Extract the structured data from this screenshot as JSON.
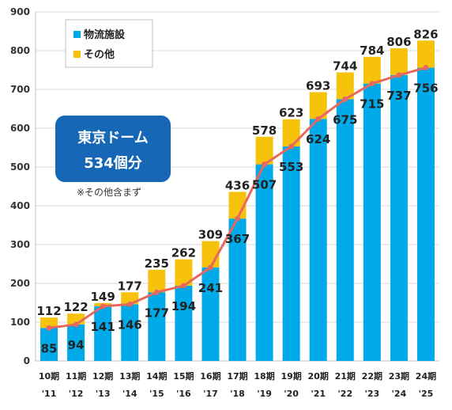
{
  "chart_data": {
    "type": "bar",
    "stacked": true,
    "categories": [
      "10期",
      "11期",
      "12期",
      "13期",
      "14期",
      "15期",
      "16期",
      "17期",
      "18期",
      "19期",
      "20期",
      "21期",
      "22期",
      "23期",
      "24期"
    ],
    "years": [
      "'11",
      "'12",
      "'13",
      "'14",
      "'15",
      "'16",
      "'17",
      "'18",
      "'19",
      "'20",
      "'21",
      "'22",
      "'23",
      "'24",
      "'25"
    ],
    "series": [
      {
        "name": "物流施設",
        "color": "#00a9e7",
        "values": [
          85,
          94,
          141,
          146,
          177,
          194,
          241,
          367,
          507,
          553,
          624,
          675,
          715,
          737,
          756
        ]
      },
      {
        "name": "その他",
        "color": "#f7c20c",
        "values": [
          27,
          28,
          8,
          31,
          58,
          68,
          68,
          69,
          71,
          70,
          69,
          69,
          69,
          69,
          70
        ]
      }
    ],
    "totals": [
      112,
      122,
      149,
      177,
      235,
      262,
      309,
      436,
      578,
      623,
      693,
      744,
      784,
      806,
      826
    ],
    "line": {
      "color": "#e8685e",
      "values": [
        85,
        94,
        141,
        146,
        177,
        194,
        241,
        367,
        507,
        553,
        624,
        675,
        715,
        737,
        756
      ]
    },
    "ylim": [
      0,
      900
    ],
    "yticks": [
      0,
      100,
      200,
      300,
      400,
      500,
      600,
      700,
      800,
      900
    ],
    "grid": true,
    "legend_position": "top-left",
    "annotation": {
      "line1": "東京ドーム",
      "line2": "534個分",
      "note": "※その他含まず",
      "color": "#1667b5"
    }
  }
}
